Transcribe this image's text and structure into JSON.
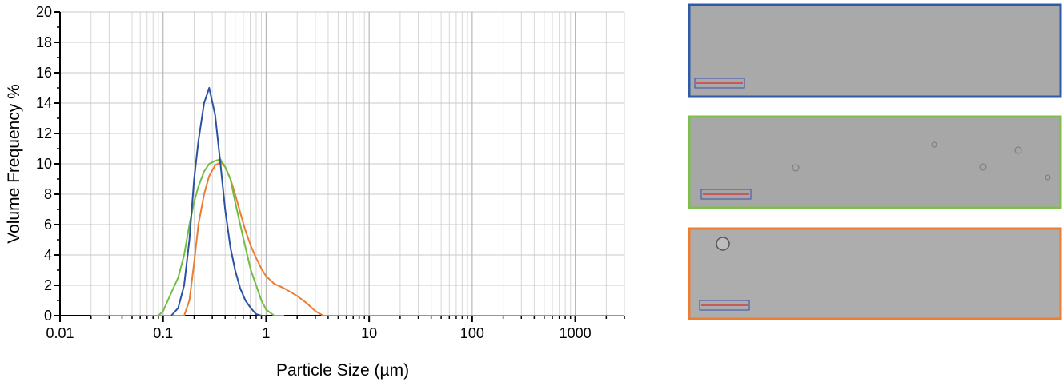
{
  "chart_data": {
    "type": "line",
    "x_label": "Particle Size (µm)",
    "y_label": "Volume Frequency %",
    "x": [
      0.02,
      0.05,
      0.09,
      0.1,
      0.12,
      0.14,
      0.16,
      0.18,
      0.2,
      0.22,
      0.25,
      0.28,
      0.32,
      0.36,
      0.4,
      0.45,
      0.5,
      0.56,
      0.63,
      0.71,
      0.8,
      0.9,
      1,
      1.2,
      1.5,
      2,
      2.5,
      3,
      3.6,
      5,
      10,
      100,
      1000,
      3000
    ],
    "series": [
      {
        "color": "#2a52a0",
        "values": [
          null,
          null,
          null,
          null,
          0,
          0.5,
          2,
          5,
          9,
          11.5,
          14,
          15,
          13.2,
          10,
          7,
          4.5,
          3,
          1.8,
          1,
          0.5,
          0.1,
          0,
          0,
          null,
          null,
          null,
          null,
          null,
          null,
          null,
          null,
          null,
          null,
          null
        ]
      },
      {
        "color": "#70bf44",
        "values": [
          null,
          null,
          0,
          0.3,
          1.5,
          2.5,
          4,
          6,
          7.5,
          8.5,
          9.5,
          10,
          10.2,
          10.3,
          9.8,
          9,
          7.5,
          6,
          4.5,
          3,
          2,
          1,
          0.4,
          0,
          0,
          null,
          null,
          null,
          null,
          null,
          null,
          null,
          null,
          null
        ]
      },
      {
        "color": "#ed7d31",
        "values": [
          0,
          0,
          0,
          0,
          0,
          0,
          0,
          1,
          3.5,
          6,
          8,
          9.2,
          9.9,
          10.1,
          9.8,
          9,
          8,
          6.8,
          5.6,
          4.6,
          3.8,
          3.1,
          2.6,
          2.1,
          1.8,
          1.3,
          0.8,
          0.3,
          0,
          0,
          0,
          0,
          0,
          0
        ]
      }
    ],
    "xscale": "log",
    "xlim": [
      0.01,
      3000
    ],
    "xticks": [
      0.01,
      0.1,
      1,
      10,
      100,
      1000
    ],
    "ylim": [
      0,
      20
    ],
    "yticks": [
      0,
      2,
      4,
      6,
      8,
      10,
      12,
      14,
      16,
      18,
      20
    ],
    "grid": true,
    "minor_grid": true
  }
}
